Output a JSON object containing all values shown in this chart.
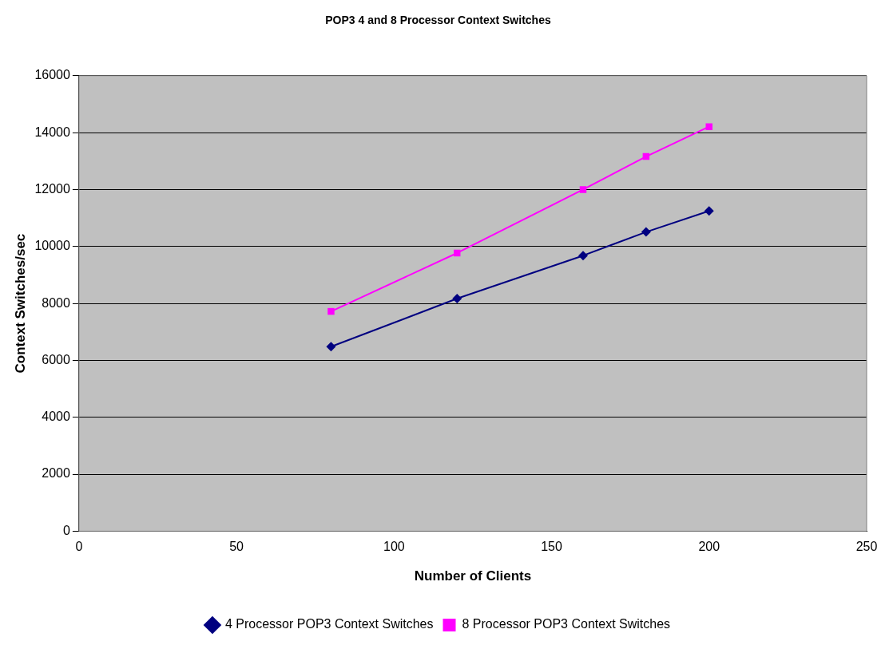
{
  "chart_data": {
    "type": "line",
    "title": "POP3 4 and 8 Processor Context Switches",
    "xlabel": "Number of Clients",
    "ylabel": "Context Switches/sec",
    "x": [
      80,
      120,
      160,
      180,
      200
    ],
    "series": [
      {
        "name": "4 Processor POP3 Context Switches",
        "color": "#000080",
        "marker": "diamond",
        "values": [
          6480,
          8170,
          9680,
          10510,
          11250
        ]
      },
      {
        "name": "8 Processor POP3 Context Switches",
        "color": "#ff00ff",
        "marker": "square",
        "values": [
          7720,
          9770,
          12000,
          13160,
          14210
        ]
      }
    ],
    "xlim": [
      0,
      250
    ],
    "xticks": [
      0,
      50,
      100,
      150,
      200,
      250
    ],
    "ylim": [
      0,
      16000
    ],
    "yticks": [
      0,
      2000,
      4000,
      6000,
      8000,
      10000,
      12000,
      14000,
      16000
    ],
    "grid": "y",
    "legend": "bottom",
    "line_style": "solid"
  }
}
